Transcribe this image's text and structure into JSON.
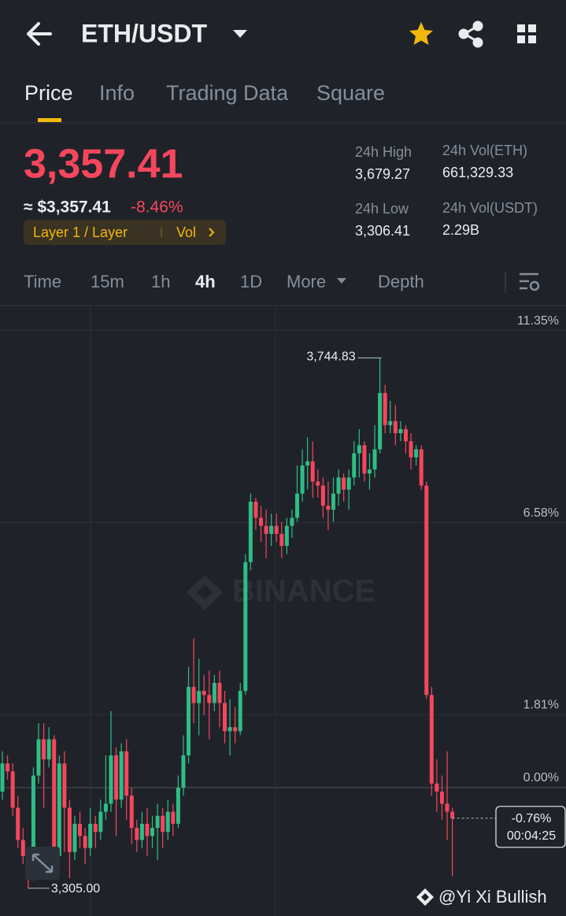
{
  "header": {
    "pair": "ETH/USDT"
  },
  "tabs": [
    "Price",
    "Info",
    "Trading Data",
    "Square"
  ],
  "price": {
    "last": "3,357.41",
    "usd": "≈ $3,357.41",
    "change": "-8.46%",
    "tag": "Layer 1 / Layer",
    "vol": "Vol"
  },
  "stats": [
    {
      "label": "24h High",
      "value": "3,679.27"
    },
    {
      "label": "24h Vol(ETH)",
      "value": "661,329.33"
    },
    {
      "label": "24h Low",
      "value": "3,306.41"
    },
    {
      "label": "24h Vol(USDT)",
      "value": "2.29B"
    }
  ],
  "intervals": [
    "Time",
    "15m",
    "1h",
    "4h",
    "1D",
    "More",
    "Depth"
  ],
  "chart_data": {
    "type": "candlestick",
    "up_color": "#2ebd85",
    "down_color": "#f6465d",
    "ylim": [
      -3.13,
      11.93
    ],
    "yticks": [
      {
        "value": 11.35,
        "label": "11.35%"
      },
      {
        "value": 6.58,
        "label": "6.58%"
      },
      {
        "value": 1.81,
        "label": "1.81%"
      },
      {
        "value": 0,
        "label": "0.00%"
      }
    ],
    "grid": true,
    "open": [
      -0.1,
      0.6,
      0.4,
      -0.5,
      -1.3,
      -1.7,
      -2.2,
      0.3,
      1.2,
      0.7,
      1.2,
      -1.7,
      0.6,
      -0.5,
      -1.6,
      -0.9,
      -1.2,
      -1.5,
      -0.9,
      -1.1,
      -0.6,
      -0.4,
      0.8,
      -0.3,
      0.9,
      -0.2,
      -1.0,
      -1.3,
      -0.9,
      -1.2,
      -1.0,
      -0.7,
      -1.1,
      -0.6,
      -0.9,
      0.0,
      0.8,
      2.5,
      2.1,
      2.4,
      2.3,
      2.1,
      2.6,
      2.1,
      1.4,
      1.5,
      1.4,
      2.4,
      5.6,
      7.1,
      6.7,
      6.5,
      6.3,
      6.5,
      6.3,
      6.0,
      6.5,
      6.7,
      7.3,
      8.0,
      8.1,
      7.6,
      7.5,
      7.0,
      6.9,
      7.3,
      7.7,
      7.4,
      7.7,
      8.3,
      8.5,
      7.8,
      7.9,
      8.4,
      9.8,
      9.0,
      9.1,
      8.8,
      8.9,
      8.6,
      8.2,
      8.4,
      7.5,
      2.3,
      0.1,
      -0.1,
      -0.4,
      -0.6
    ],
    "high": [
      0.9,
      0.8,
      0.6,
      -0.2,
      -1.0,
      -1.5,
      0.5,
      1.6,
      1.6,
      1.5,
      1.3,
      0.8,
      0.9,
      -0.3,
      -0.7,
      -0.6,
      -1.0,
      -0.5,
      -0.7,
      -0.3,
      0.8,
      1.9,
      1.0,
      1.1,
      1.2,
      0.0,
      -0.8,
      -0.6,
      -0.5,
      -0.7,
      -0.4,
      -0.5,
      -0.3,
      -0.4,
      0.3,
      1.3,
      3.0,
      3.7,
      3.2,
      2.8,
      2.9,
      2.8,
      2.9,
      2.4,
      2.2,
      2.0,
      2.6,
      5.8,
      7.3,
      7.2,
      7.0,
      6.9,
      6.8,
      6.8,
      6.6,
      6.7,
      6.9,
      8.0,
      8.4,
      8.7,
      8.6,
      7.9,
      7.7,
      7.6,
      7.7,
      7.9,
      7.8,
      7.9,
      8.6,
      8.9,
      8.6,
      8.3,
      9.0,
      10.67,
      10.0,
      9.6,
      9.5,
      9.1,
      9.0,
      8.8,
      8.5,
      8.5,
      7.6,
      2.5,
      0.7,
      0.3,
      0.9,
      -0.5
    ],
    "low": [
      -0.3,
      0.2,
      -0.7,
      -1.5,
      -1.9,
      -2.5,
      -2.3,
      0.1,
      -0.5,
      0.5,
      -2.0,
      -1.9,
      -1.6,
      -2.25,
      -1.8,
      -1.5,
      -1.9,
      -1.7,
      -1.5,
      -1.3,
      -0.8,
      -0.6,
      -1.2,
      -0.5,
      -0.8,
      -1.4,
      -1.6,
      -1.5,
      -1.7,
      -1.5,
      -1.8,
      -1.5,
      -1.3,
      -1.2,
      -1.0,
      -0.2,
      0.6,
      1.6,
      1.3,
      1.8,
      1.2,
      1.9,
      1.5,
      1.1,
      0.8,
      1.1,
      1.3,
      2.3,
      5.4,
      6.4,
      6.1,
      5.7,
      6.0,
      6.1,
      5.7,
      5.8,
      6.2,
      6.6,
      7.1,
      7.4,
      7.2,
      7.2,
      6.7,
      6.4,
      6.6,
      7.0,
      7.1,
      6.9,
      7.5,
      7.7,
      7.6,
      7.4,
      7.7,
      8.3,
      8.8,
      8.8,
      8.5,
      8.6,
      8.3,
      7.9,
      8.0,
      7.4,
      2.2,
      -0.2,
      -0.6,
      -0.8,
      -1.3,
      -2.2
    ],
    "close": [
      0.6,
      0.4,
      -0.5,
      -1.3,
      -1.7,
      -2.2,
      0.3,
      1.2,
      0.7,
      1.2,
      -1.7,
      0.6,
      -0.5,
      -1.6,
      -0.9,
      -1.2,
      -1.5,
      -0.9,
      -1.1,
      -0.6,
      -0.4,
      0.8,
      -0.3,
      0.9,
      -0.2,
      -1.0,
      -1.3,
      -0.9,
      -1.2,
      -1.0,
      -0.7,
      -1.1,
      -0.6,
      -0.9,
      0.0,
      0.8,
      2.5,
      2.1,
      2.4,
      2.3,
      2.1,
      2.6,
      2.1,
      1.4,
      1.5,
      1.4,
      2.4,
      5.6,
      7.1,
      6.7,
      6.5,
      6.3,
      6.5,
      6.3,
      6.0,
      6.5,
      6.7,
      7.3,
      8.0,
      8.1,
      7.6,
      7.5,
      7.0,
      6.9,
      7.3,
      7.7,
      7.4,
      7.7,
      8.3,
      8.5,
      7.8,
      7.9,
      8.4,
      9.8,
      9.0,
      9.1,
      8.8,
      8.9,
      8.6,
      8.2,
      8.4,
      7.5,
      2.3,
      0.1,
      -0.1,
      -0.4,
      -0.6,
      -0.76
    ],
    "max_label": "3,744.83",
    "min_label": "3,305.00",
    "price_tag": [
      "-0.76%",
      "00:04:25"
    ]
  },
  "watermark": [
    "BINANCE",
    "@Yi Xi Bullish"
  ]
}
